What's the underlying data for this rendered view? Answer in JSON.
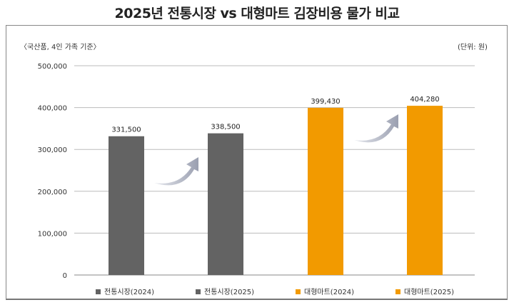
{
  "chart_data": {
    "type": "bar",
    "title": "2025년 전통시장 vs 대형마트 김장비용 물가 비교",
    "subtitle": "〈국산품, 4인 가족 기준〉",
    "unit_note": "(단위: 원)",
    "categories": [
      "전통시장(2024)",
      "전통시장(2025)",
      "대형마트(2024)",
      "대형마트(2025)"
    ],
    "values": [
      331500,
      338500,
      399430,
      404280
    ],
    "value_labels": [
      "331,500",
      "338,500",
      "399,430",
      "404,280"
    ],
    "colors": [
      "#636363",
      "#636363",
      "#f29a00",
      "#f29a00"
    ],
    "ylim": [
      0,
      500000
    ],
    "yticks": [
      0,
      100000,
      200000,
      300000,
      400000,
      500000
    ],
    "ytick_labels": [
      "0",
      "100,000",
      "200,000",
      "300,000",
      "400,000",
      "500,000"
    ],
    "grid": true,
    "legend": "bottom",
    "xlabel": "",
    "ylabel": ""
  }
}
